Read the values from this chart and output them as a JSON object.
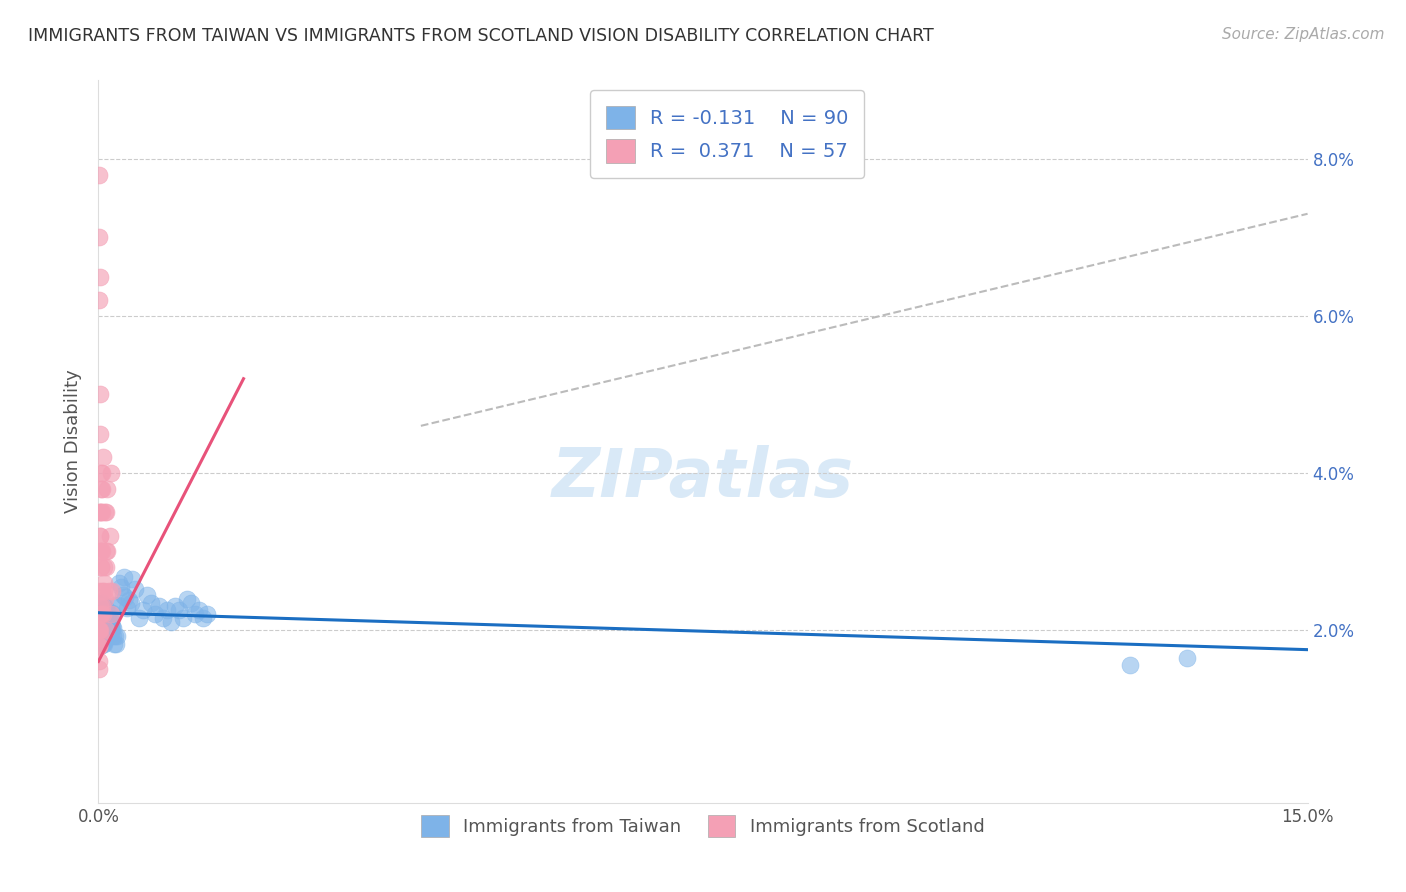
{
  "title": "IMMIGRANTS FROM TAIWAN VS IMMIGRANTS FROM SCOTLAND VISION DISABILITY CORRELATION CHART",
  "source": "Source: ZipAtlas.com",
  "ylabel": "Vision Disability",
  "xlim": [
    0.0,
    0.15
  ],
  "ylim": [
    -0.002,
    0.09
  ],
  "xticks": [
    0.0,
    0.05,
    0.1,
    0.15
  ],
  "xticklabels": [
    "0.0%",
    "",
    "",
    "15.0%"
  ],
  "ytick_vals": [
    0.02,
    0.04,
    0.06,
    0.08
  ],
  "yticklabels": [
    "2.0%",
    "4.0%",
    "6.0%",
    "8.0%"
  ],
  "taiwan_color": "#7EB3E8",
  "scotland_color": "#F4A0B5",
  "taiwan_line_color": "#1B6EC2",
  "scotland_line_color": "#E8527A",
  "taiwan_R": -0.131,
  "taiwan_N": 90,
  "scotland_R": 0.371,
  "scotland_N": 57,
  "taiwan_scatter_x": [
    0.0002,
    0.0003,
    0.0005,
    0.0003,
    0.0006,
    0.0002,
    0.0007,
    0.0004,
    0.0003,
    0.0002,
    0.0008,
    0.0005,
    0.001,
    0.0006,
    0.0004,
    0.0009,
    0.0003,
    0.0011,
    0.0005,
    0.0008,
    0.0012,
    0.0009,
    0.0014,
    0.0008,
    0.0006,
    0.0013,
    0.0004,
    0.0015,
    0.0007,
    0.001,
    0.0016,
    0.0012,
    0.0017,
    0.0009,
    0.0007,
    0.0014,
    0.0005,
    0.0018,
    0.0008,
    0.0013,
    0.0019,
    0.0015,
    0.002,
    0.001,
    0.0008,
    0.0016,
    0.0006,
    0.0021,
    0.0009,
    0.0014,
    0.0022,
    0.0017,
    0.0023,
    0.0011,
    0.0009,
    0.0018,
    0.0007,
    0.0024,
    0.001,
    0.0015,
    0.003,
    0.0035,
    0.0028,
    0.004,
    0.0032,
    0.0045,
    0.0038,
    0.0025,
    0.0042,
    0.0033,
    0.005,
    0.0055,
    0.006,
    0.0065,
    0.007,
    0.0075,
    0.008,
    0.0085,
    0.009,
    0.0095,
    0.01,
    0.0105,
    0.011,
    0.0115,
    0.012,
    0.0125,
    0.013,
    0.0135,
    0.135,
    0.128
  ],
  "taiwan_scatter_y": [
    0.021,
    0.0195,
    0.0225,
    0.02,
    0.0215,
    0.018,
    0.023,
    0.0205,
    0.019,
    0.022,
    0.0195,
    0.021,
    0.0205,
    0.0225,
    0.0185,
    0.0215,
    0.02,
    0.0195,
    0.0225,
    0.021,
    0.02,
    0.019,
    0.0215,
    0.0225,
    0.0185,
    0.0205,
    0.0235,
    0.0195,
    0.0215,
    0.0225,
    0.02,
    0.0192,
    0.0222,
    0.0212,
    0.0185,
    0.0202,
    0.0232,
    0.0192,
    0.0222,
    0.0212,
    0.0182,
    0.0202,
    0.0192,
    0.0225,
    0.0215,
    0.0202,
    0.0182,
    0.0232,
    0.0222,
    0.0212,
    0.0182,
    0.0205,
    0.0192,
    0.0225,
    0.0215,
    0.0202,
    0.0182,
    0.0232,
    0.0222,
    0.0212,
    0.0245,
    0.0228,
    0.0255,
    0.0235,
    0.0268,
    0.0252,
    0.0238,
    0.026,
    0.0265,
    0.0242,
    0.0215,
    0.0225,
    0.0245,
    0.0235,
    0.022,
    0.023,
    0.0215,
    0.0225,
    0.021,
    0.023,
    0.0225,
    0.0215,
    0.024,
    0.0235,
    0.022,
    0.0225,
    0.0215,
    0.022,
    0.0165,
    0.0155
  ],
  "scotland_scatter_x": [
    0.0001,
    0.0002,
    0.0001,
    0.0003,
    0.0001,
    0.0002,
    0.0003,
    0.0001,
    0.0001,
    0.0002,
    0.0004,
    0.0002,
    0.0005,
    0.0003,
    0.0001,
    0.0004,
    0.0002,
    0.0006,
    0.0003,
    0.0001,
    0.0007,
    0.0004,
    0.0002,
    0.0008,
    0.0003,
    0.0005,
    0.0001,
    0.0007,
    0.0002,
    0.0006,
    0.001,
    0.0003,
    0.0007,
    0.0001,
    0.0011,
    0.0004,
    0.0002,
    0.0009,
    0.0003,
    0.0008,
    0.0013,
    0.0001,
    0.0009,
    0.0002,
    0.0014,
    0.0003,
    0.001,
    0.0001,
    0.0015,
    0.0002,
    0.0016,
    0.0003,
    0.0011,
    0.0001,
    0.0017,
    0.0002,
    0.0001
  ],
  "scotland_scatter_y": [
    0.02,
    0.065,
    0.035,
    0.03,
    0.025,
    0.023,
    0.028,
    0.078,
    0.07,
    0.022,
    0.03,
    0.035,
    0.025,
    0.04,
    0.02,
    0.038,
    0.032,
    0.022,
    0.035,
    0.062,
    0.026,
    0.04,
    0.03,
    0.024,
    0.038,
    0.035,
    0.018,
    0.028,
    0.032,
    0.042,
    0.02,
    0.022,
    0.025,
    0.015,
    0.03,
    0.023,
    0.045,
    0.028,
    0.022,
    0.035,
    0.025,
    0.018,
    0.03,
    0.022,
    0.032,
    0.019,
    0.035,
    0.02,
    0.04,
    0.05,
    0.022,
    0.028,
    0.038,
    0.016,
    0.025,
    0.02,
    0.018
  ],
  "dashed_line_x": [
    0.04,
    0.15
  ],
  "dashed_line_y": [
    0.046,
    0.073
  ],
  "taiwan_line_x": [
    0.0,
    0.15
  ],
  "taiwan_line_y": [
    0.0222,
    0.0175
  ],
  "scotland_line_x": [
    0.0,
    0.018
  ],
  "scotland_line_y": [
    0.016,
    0.052
  ]
}
